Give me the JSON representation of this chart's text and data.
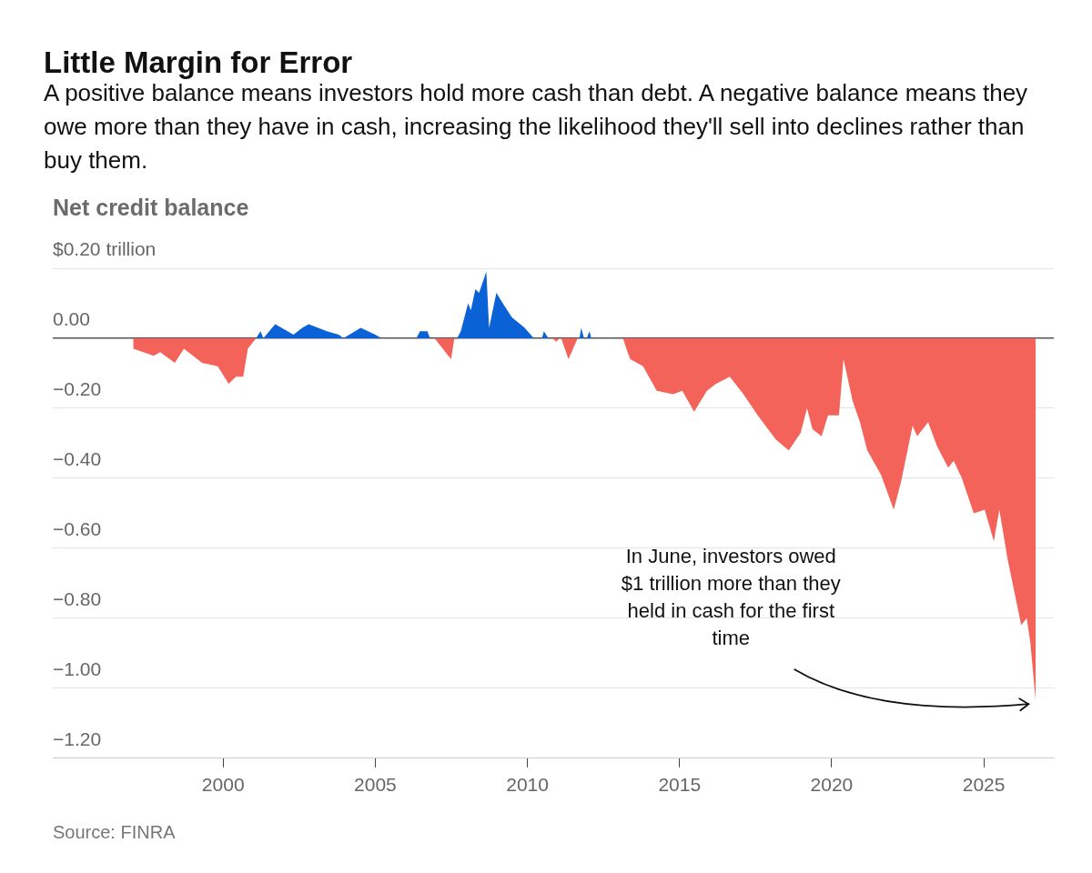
{
  "chart_data": {
    "type": "area",
    "title": "Little Margin for Error",
    "subtitle": "A positive balance means investors hold more cash than debt. A negative balance means they owe more than they have in cash, increasing the likelihood they'll sell into declines rather than buy them.",
    "ylabel": "Net credit balance",
    "series": [
      {
        "color": "#0b61d6",
        "x": [
          2001.08,
          2001.23,
          2001.32,
          2001.71,
          2001.92,
          2002.31,
          2002.6,
          2002.81,
          2003.41,
          2003.8,
          2003.95,
          2004.52,
          2005.0,
          2005.21,
          2006.35,
          2006.47,
          2006.71,
          2006.8,
          2007.2,
          2007.69,
          2007.81,
          2008.05,
          2008.14,
          2008.29,
          2008.41,
          2008.65,
          2008.74,
          2008.98,
          2009.19,
          2009.49,
          2009.91,
          2010.21,
          2010.48,
          2010.54,
          2010.69,
          2011.3,
          2011.71,
          2011.77,
          2011.86,
          2011.95,
          2012.04,
          2012.1
        ],
        "values": [
          0,
          0.02,
          0,
          0.04,
          0.03,
          0.01,
          0.03,
          0.04,
          0.02,
          0.01,
          0,
          0.03,
          0.01,
          0,
          0,
          0.02,
          0.02,
          0,
          null,
          0,
          0.02,
          0.1,
          0.08,
          0.14,
          0.13,
          0.19,
          0.03,
          0.13,
          0.1,
          0.06,
          0.03,
          0,
          0,
          0.02,
          0,
          null,
          0,
          0.03,
          0,
          0,
          0.02,
          0
        ]
      },
      {
        "color": "#f4635a",
        "x": [
          1997.04,
          1997.05,
          1997.72,
          1997.93,
          1998.41,
          1998.71,
          1999.31,
          1999.82,
          2000.18,
          2000.42,
          2000.66,
          2000.81,
          2001.08,
          2004.0,
          2006.95,
          2007.13,
          2007.49,
          2007.6,
          2009.0,
          2010.81,
          2010.96,
          2011.05,
          2011.08,
          2011.11,
          2011.35,
          2011.65,
          2012.5,
          2013.14,
          2013.29,
          2013.38,
          2013.8,
          2014.25,
          2014.79,
          2015.09,
          2015.48,
          2015.9,
          2016.2,
          2016.65,
          2017.1,
          2017.57,
          2018.17,
          2018.59,
          2018.98,
          2019.19,
          2019.37,
          2019.67,
          2019.88,
          2020.24,
          2020.39,
          2020.69,
          2020.93,
          2021.17,
          2021.62,
          2022.04,
          2022.28,
          2022.66,
          2022.81,
          2023.17,
          2023.47,
          2023.83,
          2024.01,
          2024.28,
          2024.67,
          2025.03,
          2025.33,
          2025.51,
          2025.78,
          2026.23,
          2026.41,
          2026.53,
          2026.71
        ],
        "values": [
          0,
          -0.03,
          -0.05,
          -0.04,
          -0.07,
          -0.03,
          -0.07,
          -0.08,
          -0.13,
          -0.11,
          -0.11,
          -0.03,
          0,
          null,
          0,
          -0.02,
          -0.06,
          0,
          null,
          0,
          -0.01,
          0,
          null,
          0,
          -0.06,
          0,
          null,
          0,
          -0.04,
          -0.06,
          -0.08,
          -0.15,
          -0.16,
          -0.15,
          -0.21,
          -0.15,
          -0.13,
          -0.11,
          -0.16,
          -0.22,
          -0.29,
          -0.32,
          -0.27,
          -0.2,
          -0.26,
          -0.28,
          -0.22,
          -0.22,
          -0.06,
          -0.18,
          -0.24,
          -0.32,
          -0.39,
          -0.49,
          -0.41,
          -0.25,
          -0.28,
          -0.24,
          -0.31,
          -0.37,
          -0.35,
          -0.4,
          -0.5,
          -0.49,
          -0.58,
          -0.49,
          -0.63,
          -0.82,
          -0.8,
          -0.87,
          -1.04
        ]
      }
    ],
    "xlim": [
      1994.4,
      2027.3
    ],
    "xticks": [
      2000,
      2005,
      2010,
      2015,
      2020,
      2025
    ],
    "ylim": [
      -1.2,
      0.2
    ],
    "yticks": [
      {
        "value": 0.2,
        "label": "$0.20 trillion"
      },
      {
        "value": 0,
        "label": "0.00"
      },
      {
        "value": -0.2,
        "label": "−0.20"
      },
      {
        "value": -0.4,
        "label": "−0.40"
      },
      {
        "value": -0.6,
        "label": "−0.60"
      },
      {
        "value": -0.8,
        "label": "−0.80"
      },
      {
        "value": -1.0,
        "label": "−1.00"
      },
      {
        "value": -1.2,
        "label": "−1.20"
      }
    ],
    "grid": "y",
    "legend": false,
    "marker": "none",
    "annotations": [
      {
        "text": "In June, investors owed $1 trillion more than they held in cash for the first time",
        "x": 2026.71,
        "y": -1.04
      },
      "Source: FINRA"
    ]
  }
}
